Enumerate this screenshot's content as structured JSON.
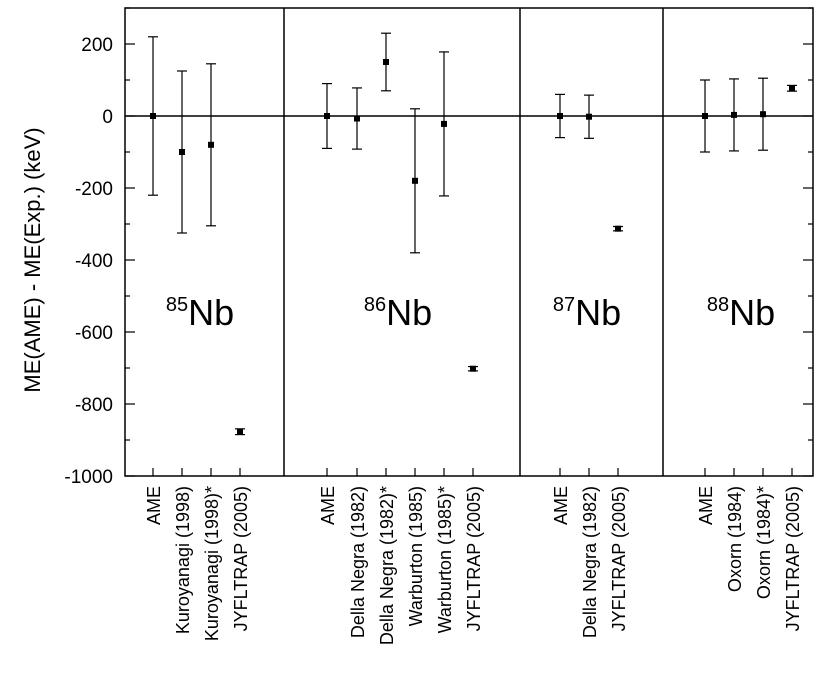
{
  "chart_data": {
    "type": "scatter",
    "ylabel": "ME(AME) - ME(Exp.) (keV)",
    "xlabel": "",
    "title": "",
    "ylim": [
      -1000,
      300
    ],
    "yticks": [
      -1000,
      -800,
      -600,
      -400,
      -200,
      0,
      200
    ],
    "grid": false,
    "reference_line_y": 0,
    "panels": [
      {
        "nuclide_mass": "85",
        "nuclide_symbol": "Nb",
        "points": [
          {
            "label": "AME",
            "value": 0,
            "error": 220
          },
          {
            "label": "Kuroyanagi (1998)",
            "value": -100,
            "error": 225
          },
          {
            "label": "Kuroyanagi (1998)*",
            "value": -80,
            "error": 225
          },
          {
            "label": "JYFLTRAP (2005)",
            "value": -877,
            "error": 8
          }
        ]
      },
      {
        "nuclide_mass": "86",
        "nuclide_symbol": "Nb",
        "points": [
          {
            "label": "AME",
            "value": 0,
            "error": 90
          },
          {
            "label": "Della Negra (1982)",
            "value": -7,
            "error": 85
          },
          {
            "label": "Della Negra (1982)*",
            "value": 150,
            "error": 80
          },
          {
            "label": "Warburton (1985)",
            "value": -180,
            "error": 200
          },
          {
            "label": "Warburton (1985)*",
            "value": -22,
            "error": 200
          },
          {
            "label": "JYFLTRAP (2005)",
            "value": -702,
            "error": 6
          }
        ]
      },
      {
        "nuclide_mass": "87",
        "nuclide_symbol": "Nb",
        "points": [
          {
            "label": "AME",
            "value": 0,
            "error": 60
          },
          {
            "label": "Della Negra (1982)",
            "value": -2,
            "error": 60
          },
          {
            "label": "JYFLTRAP (2005)",
            "value": -313,
            "error": 6
          }
        ]
      },
      {
        "nuclide_mass": "88",
        "nuclide_symbol": "Nb",
        "points": [
          {
            "label": "AME",
            "value": 0,
            "error": 100
          },
          {
            "label": "Oxorn (1984)",
            "value": 3,
            "error": 100
          },
          {
            "label": "Oxorn (1984)*",
            "value": 5,
            "error": 100
          },
          {
            "label": "JYFLTRAP (2005)",
            "value": 77,
            "error": 8
          }
        ]
      }
    ]
  }
}
